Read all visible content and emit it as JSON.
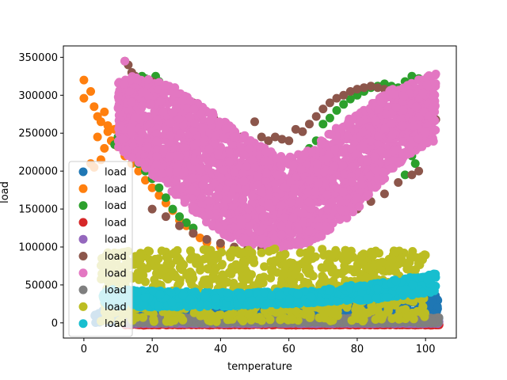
{
  "chart_data": {
    "type": "scatter",
    "xlabel": "temperature",
    "ylabel": "load",
    "xlim": [
      -6,
      109
    ],
    "ylim": [
      -20000,
      365000
    ],
    "x_ticks": [
      0,
      20,
      40,
      60,
      80,
      100
    ],
    "y_ticks": [
      0,
      50000,
      100000,
      150000,
      200000,
      250000,
      300000,
      350000
    ],
    "legend": {
      "placement": "center-left",
      "entries": [
        "load",
        "load",
        "load",
        "load",
        "load",
        "load",
        "load",
        "load",
        "load",
        "load"
      ]
    },
    "grid": false,
    "series": [
      {
        "name": "load",
        "color": "#1f77b4",
        "kind": "band",
        "x_range": [
          3,
          104
        ],
        "y_low": [
          0,
          0,
          0,
          0,
          0,
          0
        ],
        "y_high": [
          20000,
          15000,
          15000,
          18000,
          30000,
          38000
        ],
        "extra_points": [
          [
            98,
            35000
          ],
          [
            102,
            36000
          ],
          [
            100,
            40000
          ]
        ]
      },
      {
        "name": "load",
        "color": "#ff7f0e",
        "kind": "points",
        "points": [
          [
            0,
            320000
          ],
          [
            0,
            296000
          ],
          [
            2,
            305000
          ],
          [
            3,
            285000
          ],
          [
            4,
            272000
          ],
          [
            5,
            265000
          ],
          [
            6,
            278000
          ],
          [
            7,
            252000
          ],
          [
            8,
            240000
          ],
          [
            2,
            210000
          ],
          [
            3,
            205000
          ],
          [
            5,
            215000
          ],
          [
            6,
            230000
          ],
          [
            10,
            232000
          ],
          [
            12,
            220000
          ],
          [
            14,
            210000
          ],
          [
            16,
            200000
          ],
          [
            18,
            188000
          ],
          [
            20,
            178000
          ],
          [
            22,
            168000
          ],
          [
            24,
            158000
          ],
          [
            26,
            148000
          ],
          [
            28,
            135000
          ],
          [
            30,
            128000
          ],
          [
            32,
            118000
          ],
          [
            34,
            112000
          ],
          [
            36,
            106000
          ],
          [
            40,
            100000
          ],
          [
            44,
            99000
          ],
          [
            48,
            98000
          ],
          [
            4,
            245000
          ],
          [
            7,
            260000
          ],
          [
            9,
            255000
          ],
          [
            11,
            268000
          ],
          [
            13,
            245000
          ],
          [
            15,
            230000
          ],
          [
            17,
            205000
          ]
        ]
      },
      {
        "name": "load",
        "color": "#2ca02c",
        "kind": "points",
        "points": [
          [
            9,
            235000
          ],
          [
            10,
            245000
          ],
          [
            11,
            270000
          ],
          [
            12,
            262000
          ],
          [
            13,
            285000
          ],
          [
            14,
            310000
          ],
          [
            15,
            320000
          ],
          [
            16,
            300000
          ],
          [
            17,
            325000
          ],
          [
            18,
            322000
          ],
          [
            19,
            310000
          ],
          [
            20,
            300000
          ],
          [
            21,
            325000
          ],
          [
            22,
            318000
          ],
          [
            14,
            220000
          ],
          [
            16,
            210000
          ],
          [
            18,
            200000
          ],
          [
            20,
            190000
          ],
          [
            22,
            178000
          ],
          [
            24,
            165000
          ],
          [
            26,
            150000
          ],
          [
            28,
            140000
          ],
          [
            30,
            132000
          ],
          [
            32,
            125000
          ],
          [
            70,
            262000
          ],
          [
            72,
            270000
          ],
          [
            74,
            280000
          ],
          [
            76,
            288000
          ],
          [
            78,
            295000
          ],
          [
            80,
            300000
          ],
          [
            82,
            305000
          ],
          [
            84,
            310000
          ],
          [
            86,
            312000
          ],
          [
            88,
            315000
          ],
          [
            90,
            312000
          ],
          [
            92,
            310000
          ],
          [
            94,
            318000
          ],
          [
            96,
            325000
          ],
          [
            98,
            322000
          ],
          [
            100,
            300000
          ],
          [
            102,
            298000
          ],
          [
            66,
            230000
          ],
          [
            68,
            240000
          ],
          [
            64,
            210000
          ],
          [
            96,
            220000
          ],
          [
            97,
            210000
          ],
          [
            94,
            195000
          ]
        ]
      },
      {
        "name": "load",
        "color": "#d62728",
        "kind": "band",
        "x_range": [
          12,
          104
        ],
        "y_low": [
          -3000,
          -3000,
          -3000,
          -3000,
          -3000,
          -3000
        ],
        "y_high": [
          0,
          0,
          0,
          0,
          0,
          0
        ],
        "extra_points": []
      },
      {
        "name": "load",
        "color": "#9467bd",
        "kind": "band",
        "x_range": [
          12,
          104
        ],
        "y_low": [
          -1000,
          -1000,
          -1000,
          -1000,
          -1000,
          -1000
        ],
        "y_high": [
          1500,
          1500,
          1500,
          1500,
          1500,
          1500
        ],
        "extra_points": []
      },
      {
        "name": "load",
        "color": "#8c564b",
        "kind": "points",
        "points": [
          [
            12,
            345000
          ],
          [
            13,
            340000
          ],
          [
            14,
            330000
          ],
          [
            15,
            325000
          ],
          [
            16,
            318000
          ],
          [
            17,
            315000
          ],
          [
            19,
            320000
          ],
          [
            20,
            318000
          ],
          [
            22,
            315000
          ],
          [
            24,
            312000
          ],
          [
            26,
            308000
          ],
          [
            28,
            302000
          ],
          [
            30,
            295000
          ],
          [
            32,
            290000
          ],
          [
            34,
            282000
          ],
          [
            36,
            278000
          ],
          [
            38,
            270000
          ],
          [
            40,
            262000
          ],
          [
            42,
            258000
          ],
          [
            44,
            250000
          ],
          [
            46,
            245000
          ],
          [
            48,
            240000
          ],
          [
            50,
            265000
          ],
          [
            52,
            245000
          ],
          [
            54,
            240000
          ],
          [
            56,
            245000
          ],
          [
            58,
            242000
          ],
          [
            60,
            240000
          ],
          [
            62,
            255000
          ],
          [
            64,
            252000
          ],
          [
            66,
            262000
          ],
          [
            68,
            272000
          ],
          [
            70,
            282000
          ],
          [
            72,
            290000
          ],
          [
            74,
            296000
          ],
          [
            76,
            300000
          ],
          [
            78,
            305000
          ],
          [
            80,
            308000
          ],
          [
            82,
            310000
          ],
          [
            84,
            312000
          ],
          [
            86,
            310000
          ],
          [
            88,
            308000
          ],
          [
            90,
            305000
          ],
          [
            92,
            300000
          ],
          [
            94,
            295000
          ],
          [
            96,
            285000
          ],
          [
            98,
            280000
          ],
          [
            100,
            270000
          ],
          [
            102,
            265000
          ],
          [
            103,
            268000
          ],
          [
            98,
            200000
          ],
          [
            96,
            195000
          ],
          [
            92,
            185000
          ],
          [
            88,
            170000
          ],
          [
            84,
            160000
          ],
          [
            80,
            150000
          ],
          [
            76,
            140000
          ],
          [
            72,
            130000
          ],
          [
            68,
            122000
          ],
          [
            64,
            112000
          ],
          [
            60,
            105000
          ],
          [
            56,
            100000
          ],
          [
            52,
            98000
          ],
          [
            48,
            98000
          ],
          [
            44,
            100000
          ],
          [
            40,
            105000
          ],
          [
            36,
            110000
          ],
          [
            32,
            118000
          ],
          [
            28,
            128000
          ],
          [
            24,
            140000
          ],
          [
            20,
            150000
          ]
        ]
      },
      {
        "name": "load",
        "color": "#e377c2",
        "kind": "region",
        "x_range": [
          10,
          103
        ],
        "upper": [
          [
            10,
            318000
          ],
          [
            14,
            325000
          ],
          [
            20,
            322000
          ],
          [
            25,
            315000
          ],
          [
            30,
            300000
          ],
          [
            35,
            285000
          ],
          [
            40,
            270000
          ],
          [
            45,
            255000
          ],
          [
            50,
            240000
          ],
          [
            55,
            225000
          ],
          [
            60,
            220000
          ],
          [
            65,
            225000
          ],
          [
            70,
            245000
          ],
          [
            75,
            262000
          ],
          [
            80,
            278000
          ],
          [
            85,
            292000
          ],
          [
            90,
            308000
          ],
          [
            95,
            315000
          ],
          [
            100,
            325000
          ],
          [
            103,
            328000
          ]
        ],
        "lower": [
          [
            10,
            230000
          ],
          [
            14,
            215000
          ],
          [
            20,
            195000
          ],
          [
            25,
            175000
          ],
          [
            30,
            155000
          ],
          [
            35,
            135000
          ],
          [
            40,
            118000
          ],
          [
            45,
            108000
          ],
          [
            50,
            100000
          ],
          [
            55,
            96000
          ],
          [
            60,
            98000
          ],
          [
            65,
            104000
          ],
          [
            70,
            115000
          ],
          [
            75,
            130000
          ],
          [
            80,
            150000
          ],
          [
            85,
            175000
          ],
          [
            90,
            200000
          ],
          [
            95,
            220000
          ],
          [
            100,
            235000
          ],
          [
            103,
            240000
          ]
        ],
        "extra_points": [
          [
            12,
            345000
          ],
          [
            103,
            328000
          ]
        ]
      },
      {
        "name": "load",
        "color": "#7f7f7f",
        "kind": "band",
        "x_range": [
          12,
          104
        ],
        "y_low": [
          0,
          0,
          0,
          0,
          0,
          0
        ],
        "y_high": [
          8000,
          7000,
          6000,
          6000,
          6500,
          7000
        ],
        "extra_points": []
      },
      {
        "name": "load",
        "color": "#bcbd22",
        "kind": "band",
        "x_range": [
          5,
          100
        ],
        "y_low": [
          0,
          0,
          2000,
          2000,
          2000,
          3000
        ],
        "y_high": [
          95000,
          96000,
          97000,
          98000,
          96000,
          95000
        ],
        "extra_points": []
      },
      {
        "name": "load",
        "color": "#17becf",
        "kind": "band",
        "x_range": [
          5,
          103
        ],
        "y_low": [
          22000,
          20000,
          22000,
          25000,
          30000,
          40000
        ],
        "y_high": [
          45000,
          42000,
          40000,
          42000,
          52000,
          65000
        ],
        "extra_points": []
      }
    ]
  }
}
